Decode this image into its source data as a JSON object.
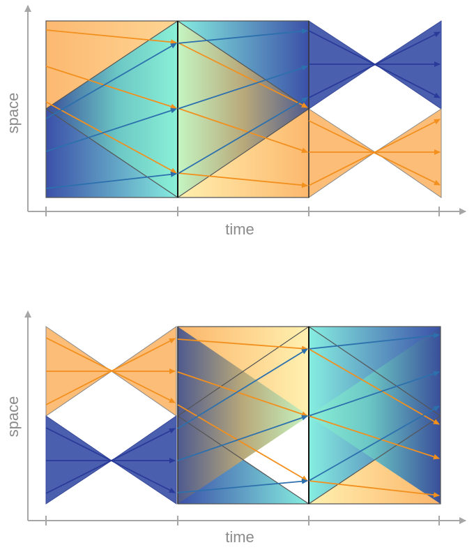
{
  "labels": {
    "top_ylabel": "space",
    "top_xlabel": "time",
    "bottom_ylabel": "space",
    "bottom_xlabel": "time"
  },
  "colors": {
    "axis": "#a6a6a6",
    "orange_light": "#ffe9a8",
    "orange_dark": "#fcb56a",
    "orange_arrow": "#f28f1d",
    "blue_dark": "#3b50a8",
    "blue_cyan": "#7de7e2",
    "blue_arrow": "#2c70ad",
    "navy_arrow": "#2a3a9a",
    "edge": "#555555",
    "boundary": "#111111"
  }
}
